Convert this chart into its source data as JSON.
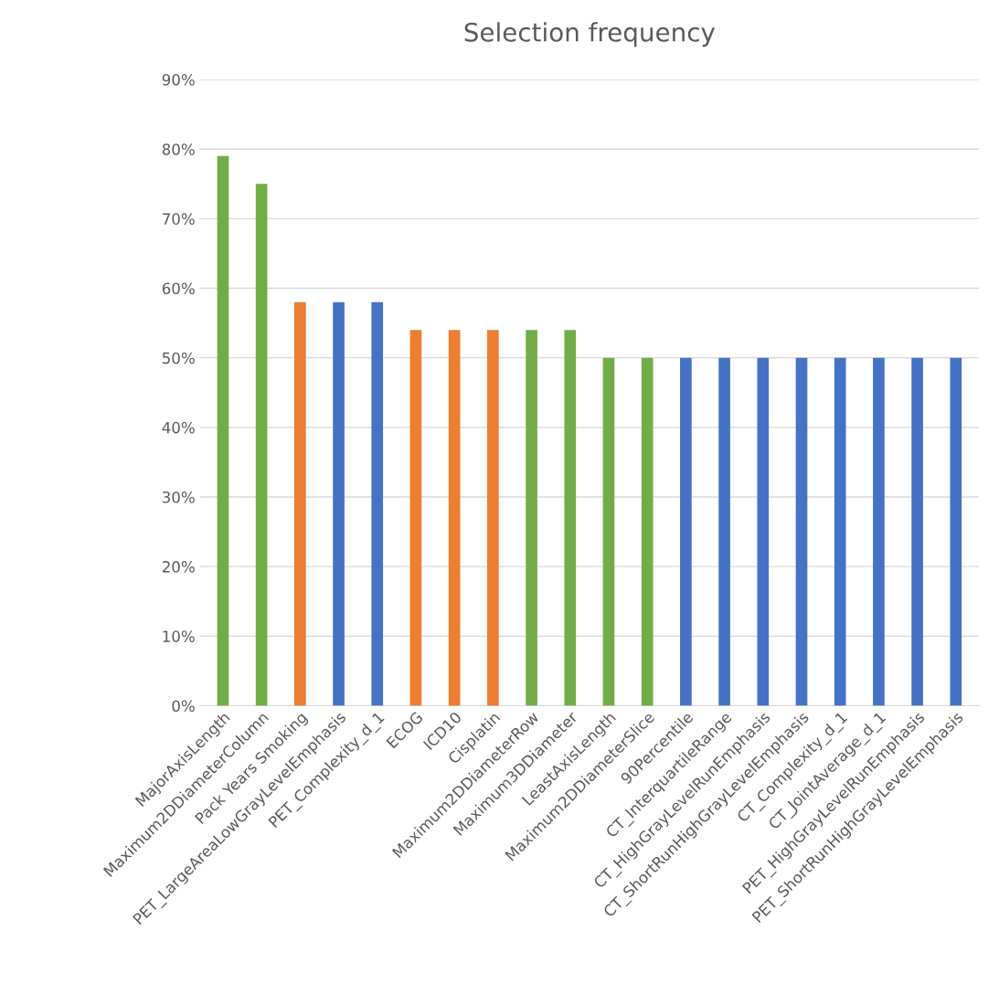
{
  "chart_data": {
    "type": "bar",
    "title": "Selection frequency",
    "categories": [
      "MajorAxisLength",
      "Maximum2DDiameterColumn",
      "Pack Years Smoking",
      "PET_LargeAreaLowGrayLevelEmphasis",
      "PET_Complexity_d_1",
      "ECOG",
      "ICD10",
      "Cisplatin",
      "Maximum2DDiameterRow",
      "Maximum3DDiameter",
      "LeastAxisLength",
      "Maximum2DDiameterSlice",
      "90Percentile",
      "CT_InterquartileRange",
      "CT_HighGrayLevelRunEmphasis",
      "CT_ShortRunHighGrayLevelEmphasis",
      "CT_Complexity_d_1",
      "CT_JointAverage_d_1",
      "PET_HighGrayLevelRunEmphasis",
      "PET_ShortRunHighGrayLevelEmphasis"
    ],
    "values": [
      79,
      75,
      58,
      58,
      58,
      54,
      54,
      54,
      54,
      54,
      50,
      50,
      50,
      50,
      50,
      50,
      50,
      50,
      50,
      50
    ],
    "colors": [
      "#70ad47",
      "#70ad47",
      "#ed7d31",
      "#4472c4",
      "#4472c4",
      "#ed7d31",
      "#ed7d31",
      "#ed7d31",
      "#70ad47",
      "#70ad47",
      "#70ad47",
      "#70ad47",
      "#4472c4",
      "#4472c4",
      "#4472c4",
      "#4472c4",
      "#4472c4",
      "#4472c4",
      "#4472c4",
      "#4472c4"
    ],
    "ylim": [
      0,
      90
    ],
    "yticks": [
      {
        "value": 0,
        "label": "0%"
      },
      {
        "value": 10,
        "label": "10%"
      },
      {
        "value": 20,
        "label": "20%"
      },
      {
        "value": 30,
        "label": "30%"
      },
      {
        "value": 40,
        "label": "40%"
      },
      {
        "value": 50,
        "label": "50%"
      },
      {
        "value": 60,
        "label": "60%"
      },
      {
        "value": 70,
        "label": "70%"
      },
      {
        "value": 80,
        "label": "80%"
      },
      {
        "value": 90,
        "label": "90%"
      }
    ],
    "grid": "y",
    "legend": false
  }
}
